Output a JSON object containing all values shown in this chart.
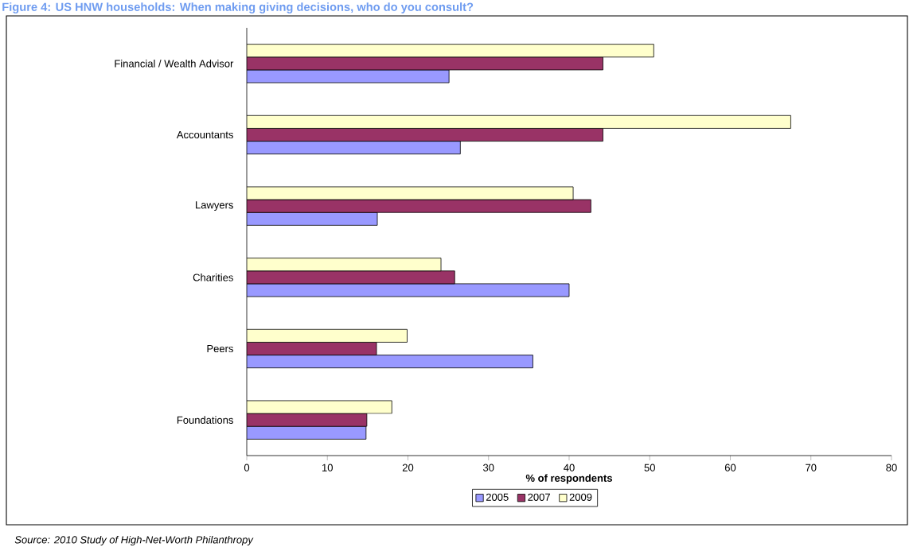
{
  "chart_data": {
    "type": "bar",
    "orientation": "horizontal",
    "title": "Figure 4: US HNW households: When making giving decisions, who do you consult?",
    "xlabel": "% of respondents",
    "categories": [
      "Financial / Wealth Advisor",
      "Accountants",
      "Lawyers",
      "Charities",
      "Peers",
      "Foundations"
    ],
    "series": [
      {
        "name": "2005",
        "color": "#9999ff",
        "values": [
          25.1,
          26.5,
          16.2,
          40.0,
          35.5,
          14.8
        ]
      },
      {
        "name": "2007",
        "color": "#993366",
        "values": [
          44.2,
          44.2,
          42.7,
          25.8,
          16.1,
          14.9
        ]
      },
      {
        "name": "2009",
        "color": "#ffffcc",
        "values": [
          50.5,
          67.5,
          40.5,
          24.1,
          19.9,
          18.0
        ]
      }
    ],
    "xlim": [
      0,
      80
    ],
    "xticks": [
      0,
      10,
      20,
      30,
      40,
      50,
      60,
      70,
      80
    ],
    "legend": "bottom",
    "annotations": [
      "Source: 2010 Study of High-Net-Worth Philanthropy"
    ]
  }
}
